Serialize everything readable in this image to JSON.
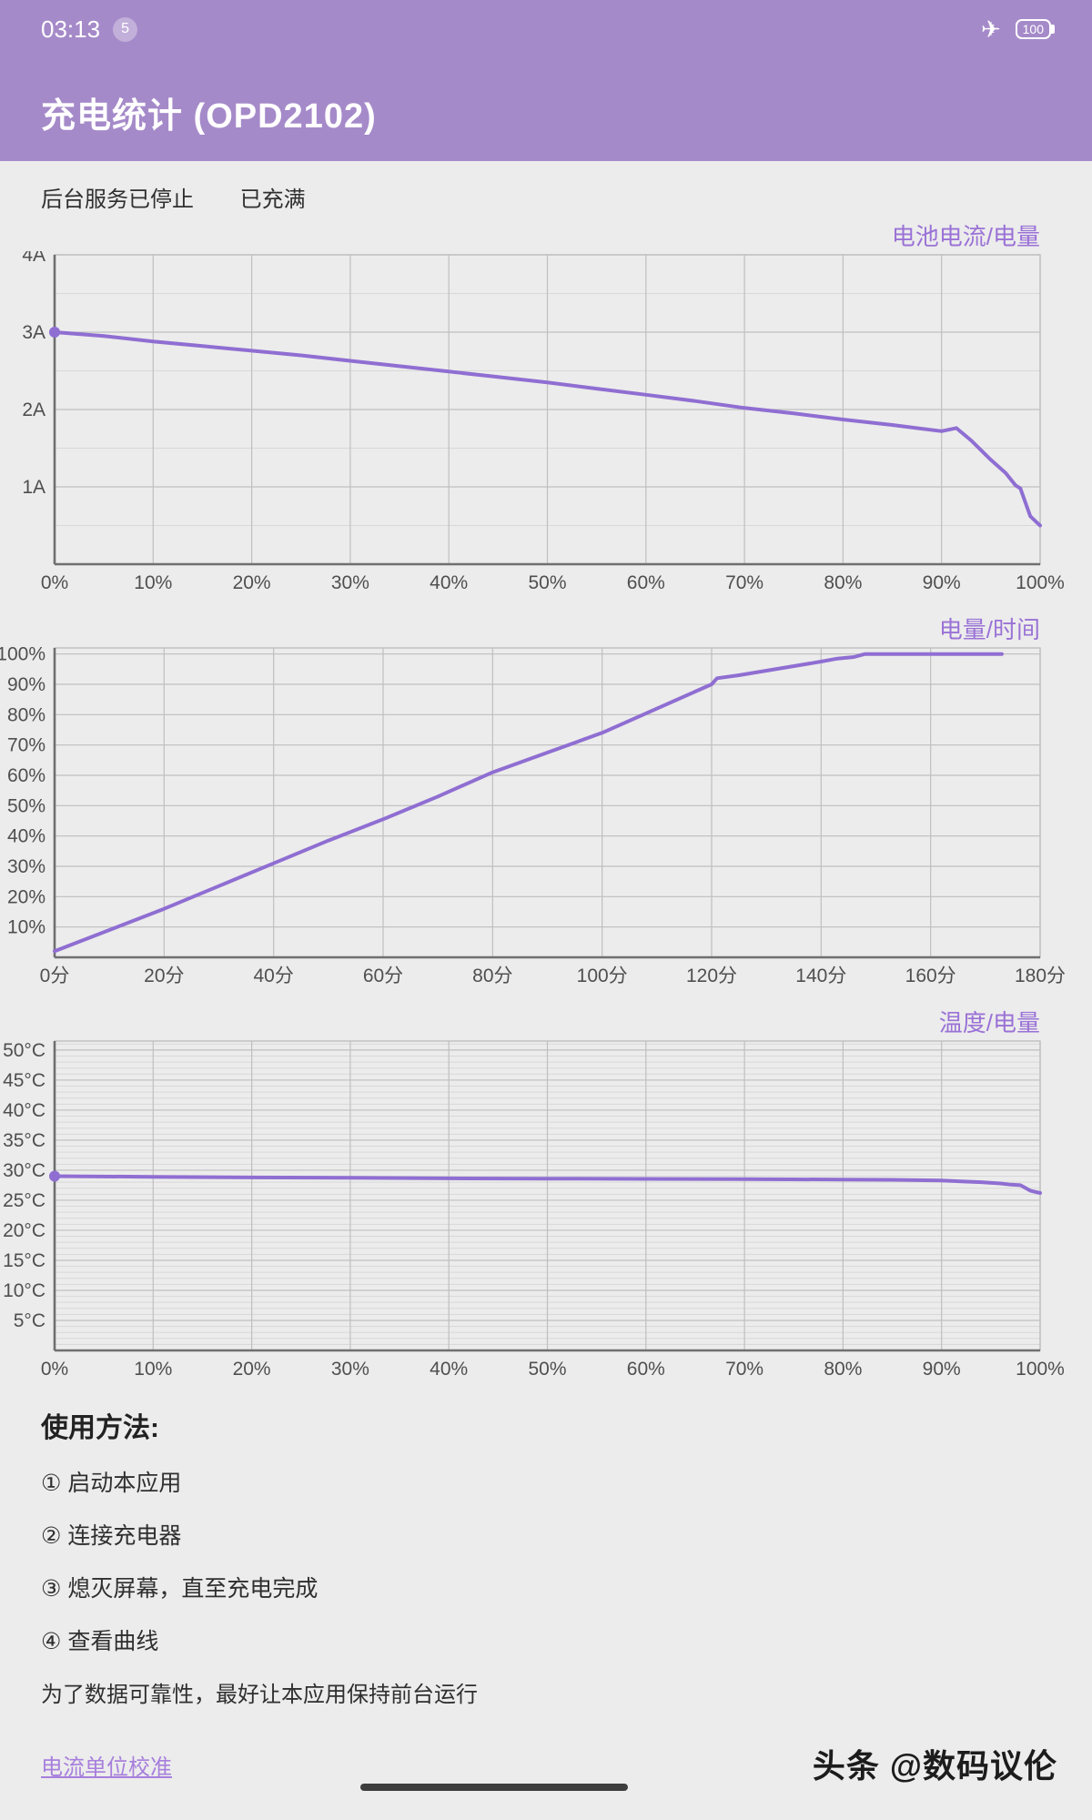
{
  "status_bar": {
    "time": "03:13",
    "badge": "5",
    "battery": "100",
    "airplane_icon": "✈"
  },
  "header": {
    "title": "充电统计 (OPD2102)"
  },
  "status_row": {
    "service_status": "后台服务已停止",
    "charge_status": "已充满"
  },
  "colors": {
    "accent": "#9a72d6",
    "line": "#8f6ed2",
    "header_bg": "#a58ac9",
    "page_bg": "#ececec",
    "grid_major": "#bfbfbf",
    "grid_minor": "#d8d8d8",
    "axis": "#6f6f6f",
    "tick_text": "#4f4f4f"
  },
  "chart_data": [
    {
      "type": "line",
      "title": "电池电流/电量",
      "xlim": [
        0,
        100
      ],
      "ylim": [
        0,
        4
      ],
      "x_tick_values": [
        0,
        10,
        20,
        30,
        40,
        50,
        60,
        70,
        80,
        90,
        100
      ],
      "x_tick_labels": [
        "0%",
        "10%",
        "20%",
        "30%",
        "40%",
        "50%",
        "60%",
        "70%",
        "80%",
        "90%",
        "100%"
      ],
      "y_tick_values": [
        4,
        3,
        2,
        1
      ],
      "y_tick_labels": [
        "4A",
        "3A",
        "2A",
        "1A"
      ],
      "y_minor_step": 0.5,
      "start_dot": true,
      "x": [
        0,
        5,
        10,
        15,
        20,
        25,
        30,
        35,
        40,
        45,
        50,
        55,
        60,
        65,
        70,
        75,
        80,
        85,
        90,
        91.5,
        93,
        95,
        96.5,
        97.5,
        98,
        99,
        100
      ],
      "y": [
        3.0,
        2.95,
        2.88,
        2.82,
        2.76,
        2.7,
        2.63,
        2.56,
        2.49,
        2.42,
        2.35,
        2.27,
        2.19,
        2.11,
        2.02,
        1.95,
        1.87,
        1.8,
        1.72,
        1.76,
        1.6,
        1.35,
        1.18,
        1.02,
        0.98,
        0.62,
        0.5
      ]
    },
    {
      "type": "line",
      "title": "电量/时间",
      "xlim": [
        0,
        180
      ],
      "ylim": [
        0,
        102
      ],
      "x_tick_values": [
        0,
        20,
        40,
        60,
        80,
        100,
        120,
        140,
        160,
        180
      ],
      "x_tick_labels": [
        "0分",
        "20分",
        "40分",
        "60分",
        "80分",
        "100分",
        "120分",
        "140分",
        "160分",
        "180分"
      ],
      "y_tick_values": [
        100,
        90,
        80,
        70,
        60,
        50,
        40,
        30,
        20,
        10
      ],
      "y_tick_labels": [
        "100%",
        "90%",
        "80%",
        "70%",
        "60%",
        "50%",
        "40%",
        "30%",
        "20%",
        "10%"
      ],
      "y_minor_step": 0,
      "start_dot": false,
      "x": [
        0,
        10,
        20,
        30,
        40,
        50,
        60,
        70,
        80,
        90,
        100,
        110,
        120,
        121,
        125,
        130,
        135,
        140,
        143,
        146,
        148,
        173
      ],
      "y": [
        2,
        9,
        16,
        23.5,
        31,
        38.5,
        45.5,
        53,
        61,
        67.5,
        74,
        82,
        90,
        92,
        93,
        94.5,
        96,
        97.5,
        98.5,
        99,
        100,
        100
      ]
    },
    {
      "type": "line",
      "title": "温度/电量",
      "xlim": [
        0,
        100
      ],
      "ylim": [
        0,
        51.5
      ],
      "x_tick_values": [
        0,
        10,
        20,
        30,
        40,
        50,
        60,
        70,
        80,
        90,
        100
      ],
      "x_tick_labels": [
        "0%",
        "10%",
        "20%",
        "30%",
        "40%",
        "50%",
        "60%",
        "70%",
        "80%",
        "90%",
        "100%"
      ],
      "y_tick_values": [
        50,
        45,
        40,
        35,
        30,
        25,
        20,
        15,
        10,
        5
      ],
      "y_tick_labels": [
        "50°C",
        "45°C",
        "40°C",
        "35°C",
        "30°C",
        "25°C",
        "20°C",
        "15°C",
        "10°C",
        "5°C"
      ],
      "y_minor_step": 1,
      "start_dot": true,
      "x": [
        0,
        10,
        20,
        30,
        40,
        50,
        60,
        70,
        80,
        85,
        90,
        92,
        94,
        96,
        97,
        98,
        99,
        100
      ],
      "y": [
        29,
        28.9,
        28.8,
        28.75,
        28.65,
        28.6,
        28.55,
        28.5,
        28.45,
        28.4,
        28.3,
        28.15,
        28.0,
        27.8,
        27.6,
        27.5,
        26.6,
        26.2
      ]
    }
  ],
  "instructions": {
    "heading": "使用方法:",
    "steps": [
      "① 启动本应用",
      "② 连接充电器",
      "③ 熄灭屏幕，直至充电完成",
      "④ 查看曲线"
    ],
    "note": "为了数据可靠性，最好让本应用保持前台运行",
    "calibration_link": "电流单位校准"
  },
  "watermark": "头条 @数码议伦"
}
